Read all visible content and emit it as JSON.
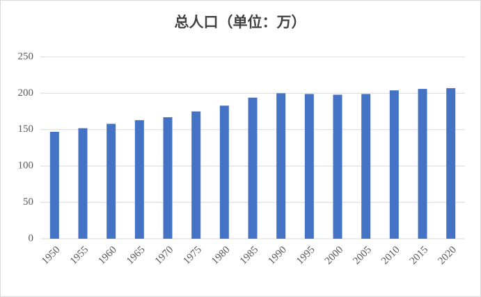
{
  "chart_data": {
    "type": "bar",
    "title": "总人口（单位：万）",
    "categories": [
      "1950",
      "1955",
      "1960",
      "1965",
      "1970",
      "1975",
      "1980",
      "1985",
      "1990",
      "1995",
      "2000",
      "2005",
      "2010",
      "2015",
      "2020"
    ],
    "values": [
      147,
      152,
      158,
      163,
      167,
      175,
      183,
      194,
      200,
      199,
      198,
      199,
      204,
      206,
      207
    ],
    "color": "#4472c4",
    "ylim": [
      0,
      250
    ],
    "yticks": [
      0,
      50,
      100,
      150,
      200,
      250
    ],
    "grid": true
  }
}
